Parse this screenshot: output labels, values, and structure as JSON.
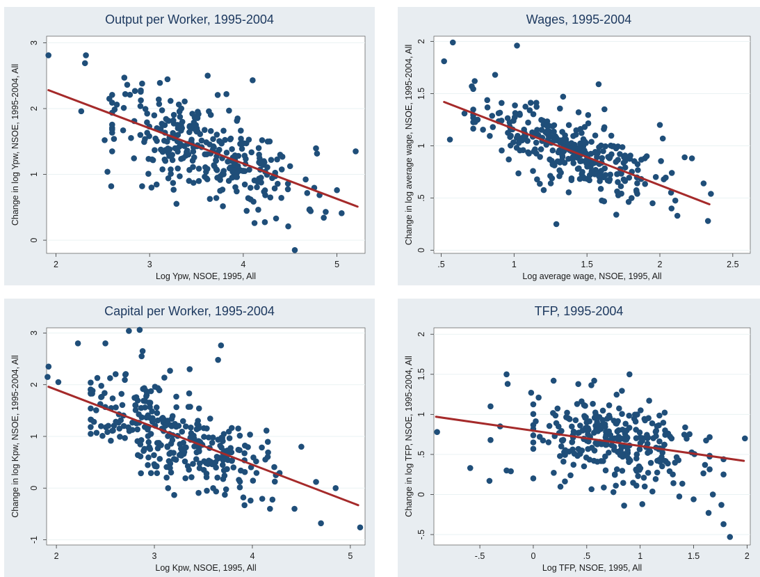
{
  "chart_data": [
    {
      "type": "scatter",
      "title": "Output per Worker, 1995-2004",
      "xlabel": "Log Ypw, NSOE, 1995, All",
      "ylabel": "Change in log Ypw, NSOE, 1995-2004, All",
      "xlim": [
        1.9,
        5.3
      ],
      "ylim": [
        -0.2,
        3.1
      ],
      "xticks": [
        2,
        3,
        4,
        5
      ],
      "xtick_labels": [
        "2",
        "3",
        "4",
        "5"
      ],
      "yticks": [
        0,
        1,
        2,
        3
      ],
      "ytick_labels": [
        "0",
        "1",
        "2",
        "3"
      ],
      "grid": true,
      "colors": {
        "points": "#1f4e79",
        "fit": "#a52a2a"
      },
      "seed": 11,
      "fit": {
        "x": [
          1.92,
          5.22
        ],
        "y": [
          2.28,
          0.51
        ]
      },
      "points": [
        [
          1.92,
          2.81
        ],
        [
          2.27,
          1.96
        ],
        [
          2.32,
          2.81
        ],
        [
          2.31,
          2.69
        ],
        [
          2.55,
          1.04
        ],
        [
          2.59,
          0.82
        ],
        [
          2.52,
          1.52
        ],
        [
          2.57,
          2.15
        ],
        [
          2.65,
          2.06
        ],
        [
          2.73,
          2.47
        ],
        [
          2.74,
          2.22
        ],
        [
          2.79,
          2.21
        ],
        [
          2.92,
          2.38
        ],
        [
          3.11,
          2.39
        ],
        [
          3.62,
          2.5
        ],
        [
          4.1,
          2.43
        ],
        [
          3.82,
          2.22
        ],
        [
          4.55,
          -0.15
        ],
        [
          4.48,
          0.21
        ],
        [
          5.2,
          1.35
        ],
        [
          5.05,
          0.41
        ],
        [
          5.0,
          0.76
        ],
        [
          4.88,
          0.43
        ],
        [
          4.12,
          0.26
        ],
        [
          4.35,
          0.33
        ],
        [
          3.25,
          0.87
        ],
        [
          2.92,
          0.82
        ],
        [
          3.02,
          0.8
        ],
        [
          3.2,
          0.94
        ]
      ],
      "cloud": {
        "n": 300,
        "xmean": 3.62,
        "xsd": 0.5,
        "slope": -0.54,
        "intercept": 3.32,
        "resid_sd": 0.33,
        "xmin": 2.6,
        "xmax": 5.0
      }
    },
    {
      "type": "scatter",
      "title": "Wages, 1995-2004",
      "xlabel": "Log average wage, NSOE, 1995, All",
      "ylabel": "Change in log average wage, NSOE, 1995-2004, All",
      "xlim": [
        0.45,
        2.62
      ],
      "ylim": [
        -0.03,
        2.05
      ],
      "xticks": [
        0.5,
        1,
        1.5,
        2,
        2.5
      ],
      "xtick_labels": [
        ".5",
        "1",
        "1.5",
        "2",
        "2.5"
      ],
      "yticks": [
        0,
        0.5,
        1,
        1.5,
        2
      ],
      "ytick_labels": [
        "0",
        ".5",
        "1",
        "1.5",
        "2"
      ],
      "grid": true,
      "colors": {
        "points": "#1f4e79",
        "fit": "#a52a2a"
      },
      "seed": 23,
      "fit": {
        "x": [
          0.52,
          2.34
        ],
        "y": [
          1.42,
          0.44
        ]
      },
      "points": [
        [
          0.52,
          1.81
        ],
        [
          0.58,
          1.99
        ],
        [
          1.02,
          1.96
        ],
        [
          0.56,
          1.06
        ],
        [
          0.66,
          1.31
        ],
        [
          0.73,
          1.62
        ],
        [
          0.71,
          1.57
        ],
        [
          0.87,
          1.68
        ],
        [
          1.29,
          0.25
        ],
        [
          1.58,
          1.59
        ],
        [
          1.62,
          1.35
        ],
        [
          2.33,
          0.28
        ],
        [
          2.35,
          0.54
        ],
        [
          2.3,
          0.64
        ],
        [
          2.22,
          0.88
        ],
        [
          2.17,
          0.89
        ],
        [
          2.0,
          1.2
        ],
        [
          2.02,
          1.07
        ],
        [
          2.12,
          0.33
        ],
        [
          2.08,
          0.4
        ],
        [
          1.91,
          0.9
        ],
        [
          1.84,
          0.56
        ],
        [
          1.95,
          0.45
        ]
      ],
      "cloud": {
        "n": 300,
        "xmean": 1.35,
        "xsd": 0.3,
        "slope": -0.54,
        "intercept": 1.7,
        "resid_sd": 0.16,
        "xmin": 0.72,
        "xmax": 2.3
      }
    },
    {
      "type": "scatter",
      "title": "Capital per Worker, 1995-2004",
      "xlabel": "Log Kpw, NSOE, 1995, All",
      "ylabel": "Change in log Kpw, NSOE, 1995-2004, All",
      "xlim": [
        1.9,
        5.15
      ],
      "ylim": [
        -1.1,
        3.1
      ],
      "xticks": [
        2,
        3,
        4,
        5
      ],
      "xtick_labels": [
        "2",
        "3",
        "4",
        "5"
      ],
      "yticks": [
        -1,
        0,
        1,
        2,
        3
      ],
      "ytick_labels": [
        "-1",
        "0",
        "1",
        "2",
        "3"
      ],
      "grid": true,
      "colors": {
        "points": "#1f4e79",
        "fit": "#a52a2a"
      },
      "seed": 37,
      "fit": {
        "x": [
          1.92,
          5.08
        ],
        "y": [
          1.96,
          -0.33
        ]
      },
      "points": [
        [
          1.92,
          2.35
        ],
        [
          1.91,
          2.15
        ],
        [
          2.02,
          2.05
        ],
        [
          2.22,
          2.8
        ],
        [
          2.5,
          2.8
        ],
        [
          2.74,
          3.04
        ],
        [
          2.85,
          3.06
        ],
        [
          2.88,
          2.65
        ],
        [
          2.87,
          2.55
        ],
        [
          3.65,
          2.48
        ],
        [
          3.68,
          2.76
        ],
        [
          3.16,
          2.27
        ],
        [
          3.36,
          2.3
        ],
        [
          4.7,
          -0.68
        ],
        [
          5.1,
          -0.76
        ],
        [
          4.85,
          0.0
        ],
        [
          4.65,
          0.12
        ],
        [
          4.5,
          0.8
        ],
        [
          4.18,
          -0.4
        ],
        [
          4.43,
          -0.4
        ],
        [
          4.24,
          0.25
        ],
        [
          2.35,
          1.05
        ],
        [
          2.41,
          1.07
        ],
        [
          3.14,
          0.0
        ],
        [
          3.6,
          0.0
        ],
        [
          3.92,
          -0.33
        ]
      ],
      "cloud": {
        "n": 300,
        "xmean": 3.2,
        "xsd": 0.45,
        "slope": -0.72,
        "intercept": 3.35,
        "resid_sd": 0.42,
        "xmin": 2.35,
        "xmax": 4.7
      }
    },
    {
      "type": "scatter",
      "title": "TFP, 1995-2004",
      "xlabel": "Log TFP, NSOE, 1995, All",
      "ylabel": "Change in log TFP, NSOE, 1995-2004, All",
      "xlim": [
        -0.93,
        2.03
      ],
      "ylim": [
        -0.63,
        2.08
      ],
      "xticks": [
        -0.5,
        0,
        0.5,
        1,
        1.5,
        2
      ],
      "xtick_labels": [
        "-.5",
        "0",
        ".5",
        "1",
        "1.5",
        "2"
      ],
      "yticks": [
        -0.5,
        0,
        0.5,
        1,
        1.5,
        2
      ],
      "ytick_labels": [
        "-.5",
        "0",
        ".5",
        "1",
        "1.5",
        "2"
      ],
      "grid": true,
      "colors": {
        "points": "#1f4e79",
        "fit": "#a52a2a"
      },
      "seed": 53,
      "fit": {
        "x": [
          -0.91,
          1.97
        ],
        "y": [
          0.97,
          0.42
        ]
      },
      "points": [
        [
          -0.9,
          0.78
        ],
        [
          -0.59,
          0.33
        ],
        [
          -0.41,
          0.17
        ],
        [
          -0.4,
          1.1
        ],
        [
          -0.25,
          1.5
        ],
        [
          -0.24,
          1.38
        ],
        [
          -0.25,
          0.3
        ],
        [
          -0.21,
          0.29
        ],
        [
          -0.4,
          0.68
        ],
        [
          -0.31,
          0.85
        ],
        [
          1.98,
          0.7
        ],
        [
          1.84,
          -0.53
        ],
        [
          1.78,
          -0.37
        ],
        [
          1.76,
          -0.13
        ],
        [
          1.78,
          0.25
        ],
        [
          1.68,
          0.0
        ],
        [
          1.64,
          -0.23
        ],
        [
          1.5,
          -0.06
        ],
        [
          1.02,
          -0.12
        ],
        [
          0.75,
          0.03
        ],
        [
          0.9,
          1.5
        ],
        [
          0.57,
          1.42
        ],
        [
          0.19,
          1.42
        ],
        [
          0.06,
          0.72
        ],
        [
          -0.02,
          1.27
        ],
        [
          0.05,
          1.21
        ],
        [
          1.78,
          0.44
        ]
      ],
      "cloud": {
        "n": 280,
        "xmean": 0.8,
        "xsd": 0.42,
        "slope": -0.19,
        "intercept": 0.79,
        "resid_sd": 0.27,
        "xmin": 0.0,
        "xmax": 1.65
      }
    }
  ]
}
